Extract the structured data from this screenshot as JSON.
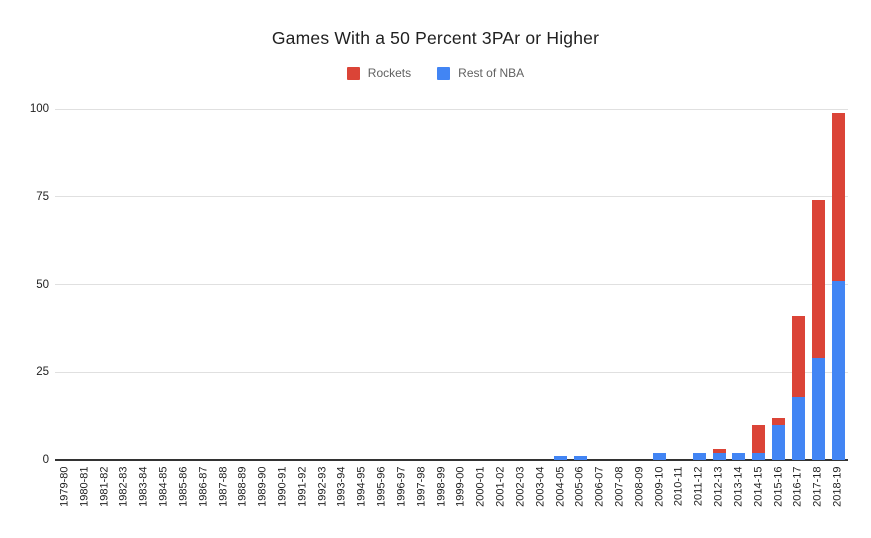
{
  "chart": {
    "title": "Games With a 50 Percent 3PAr or Higher"
  },
  "chart_data": {
    "type": "bar",
    "stacked": true,
    "title": "Games With a 50 Percent 3PAr or Higher",
    "xlabel": "",
    "ylabel": "",
    "ylim": [
      0,
      100
    ],
    "yticks": [
      0,
      25,
      50,
      75,
      100
    ],
    "grid": true,
    "legend_position": "top",
    "categories": [
      "1979-80",
      "1980-81",
      "1981-82",
      "1982-83",
      "1983-84",
      "1984-85",
      "1985-86",
      "1986-87",
      "1987-88",
      "1988-89",
      "1989-90",
      "1990-91",
      "1991-92",
      "1992-93",
      "1993-94",
      "1994-95",
      "1995-96",
      "1996-97",
      "1997-98",
      "1998-99",
      "1999-00",
      "2000-01",
      "2001-02",
      "2002-03",
      "2003-04",
      "2004-05",
      "2005-06",
      "2006-07",
      "2007-08",
      "2008-09",
      "2009-10",
      "2010-11",
      "2011-12",
      "2012-13",
      "2013-14",
      "2014-15",
      "2015-16",
      "2016-17",
      "2017-18",
      "2018-19"
    ],
    "series": [
      {
        "name": "Rockets",
        "color": "#DB4437",
        "values": [
          0,
          0,
          0,
          0,
          0,
          0,
          0,
          0,
          0,
          0,
          0,
          0,
          0,
          0,
          0,
          0,
          0,
          0,
          0,
          0,
          0,
          0,
          0,
          0,
          0,
          0,
          0,
          0,
          0,
          0,
          0,
          0,
          0,
          1,
          0,
          8,
          2,
          23,
          45,
          48
        ]
      },
      {
        "name": "Rest of NBA",
        "color": "#4285F4",
        "values": [
          0,
          0,
          0,
          0,
          0,
          0,
          0,
          0,
          0,
          0,
          0,
          0,
          0,
          0,
          0,
          0,
          0,
          0,
          0,
          0,
          0,
          0,
          0,
          0,
          0,
          1,
          1,
          0,
          0,
          0,
          2,
          0,
          2,
          2,
          2,
          2,
          10,
          18,
          29,
          51
        ]
      }
    ],
    "stack_bottom_to_top": [
      "Rest of NBA",
      "Rockets"
    ],
    "axis_colors": {
      "gridline": "#e0e0e0",
      "axis_line": "#333333",
      "tick_label": "#222222",
      "legend_text": "#616161",
      "title_text": "#212121"
    }
  }
}
